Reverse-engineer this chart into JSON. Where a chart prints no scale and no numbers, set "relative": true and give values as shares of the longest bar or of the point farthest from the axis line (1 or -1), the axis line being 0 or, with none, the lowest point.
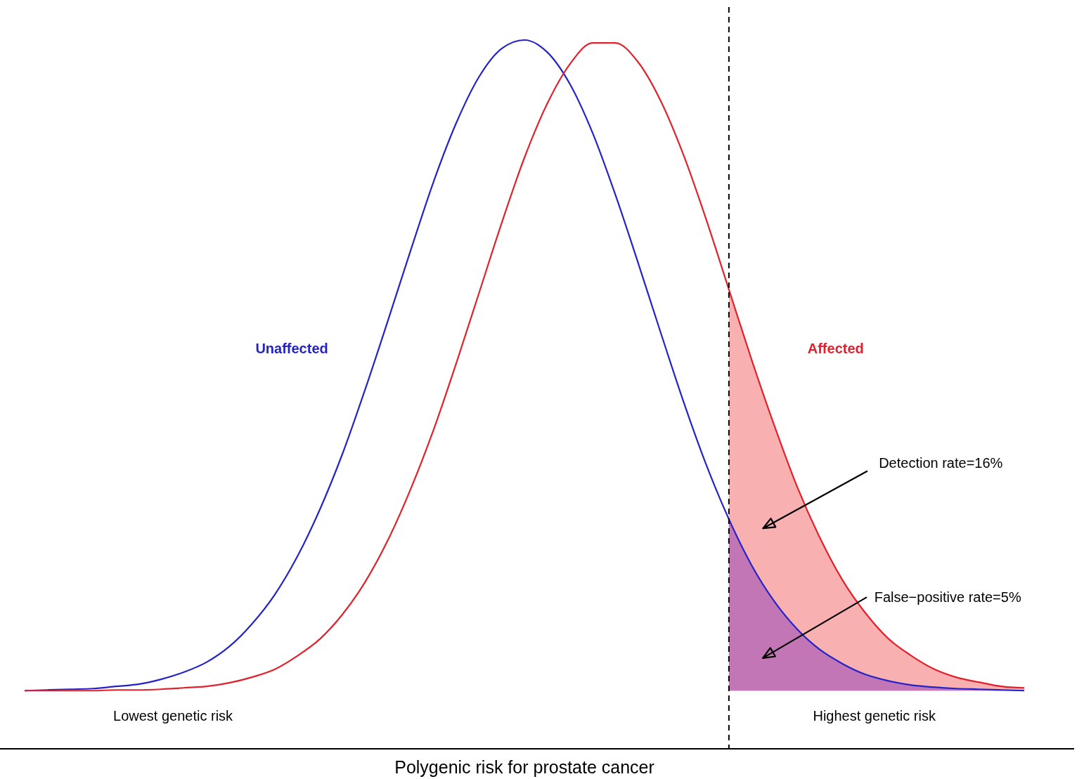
{
  "chart_data": {
    "type": "line",
    "relative": true,
    "xlabel": "Polygenic risk for prostate cancer",
    "categories": [
      null,
      null,
      null,
      null,
      null,
      null,
      null,
      null,
      null,
      null,
      null,
      null,
      null,
      null,
      null,
      null,
      null,
      null,
      null,
      null,
      null,
      null,
      null,
      null,
      null,
      null,
      null,
      null,
      null,
      null,
      null,
      null,
      null,
      null,
      null,
      null,
      null,
      null,
      null,
      null,
      null,
      null,
      null,
      null,
      null
    ],
    "series": [
      {
        "type": "area",
        "color": "#f8b0b0",
        "values": [
          null,
          null,
          null,
          null,
          null,
          null,
          null,
          null,
          null,
          null,
          null,
          null,
          null,
          null,
          null,
          null,
          null,
          null,
          null,
          null,
          null,
          null,
          null,
          null,
          null,
          null,
          null,
          null,
          null,
          null,
          null,
          0.648,
          0.549,
          0.456,
          0.37,
          0.298,
          0.238,
          0.192,
          0.156,
          0.132,
          0.113,
          0.101,
          0.094,
          0.088,
          0.086
        ]
      },
      {
        "type": "area",
        "color": "#c276b6",
        "values": [
          null,
          null,
          null,
          null,
          null,
          null,
          null,
          null,
          null,
          null,
          null,
          null,
          null,
          null,
          null,
          null,
          null,
          null,
          null,
          null,
          null,
          null,
          null,
          null,
          null,
          null,
          null,
          null,
          null,
          null,
          null,
          0.324,
          0.259,
          0.208,
          0.169,
          0.14,
          0.12,
          0.105,
          0.096,
          0.09,
          0.087,
          0.085,
          0.084,
          0.083,
          0.082
        ]
      },
      {
        "name": "Unaffected",
        "color": "#2323c8",
        "values": [
          0.082,
          0.083,
          0.084,
          0.085,
          0.088,
          0.091,
          0.098,
          0.108,
          0.122,
          0.144,
          0.176,
          0.217,
          0.271,
          0.338,
          0.417,
          0.508,
          0.605,
          0.704,
          0.8,
          0.883,
          0.948,
          0.988,
          1.0,
          0.983,
          0.938,
          0.869,
          0.782,
          0.686,
          0.587,
          0.49,
          0.401,
          0.324,
          0.259,
          0.208,
          0.169,
          0.14,
          0.12,
          0.105,
          0.096,
          0.09,
          0.087,
          0.085,
          0.084,
          0.083,
          0.082
        ]
      },
      {
        "name": "Affected",
        "color": "#e0222c",
        "values": [
          0.082,
          0.082,
          0.082,
          0.082,
          0.083,
          0.083,
          0.084,
          0.086,
          0.088,
          0.093,
          0.101,
          0.112,
          0.131,
          0.155,
          0.19,
          0.236,
          0.295,
          0.367,
          0.45,
          0.544,
          0.643,
          0.742,
          0.834,
          0.91,
          0.966,
          0.996,
          0.996,
          0.969,
          0.914,
          0.838,
          0.747,
          0.648,
          0.549,
          0.456,
          0.37,
          0.298,
          0.238,
          0.192,
          0.156,
          0.132,
          0.113,
          0.101,
          0.094,
          0.088,
          0.086
        ]
      }
    ],
    "annotations": [
      "Detection rate=16%",
      "False−positive rate=5%",
      "Lowest genetic risk",
      "Highest genetic risk"
    ],
    "legend": false,
    "marker": "none",
    "line_style": "solid"
  }
}
